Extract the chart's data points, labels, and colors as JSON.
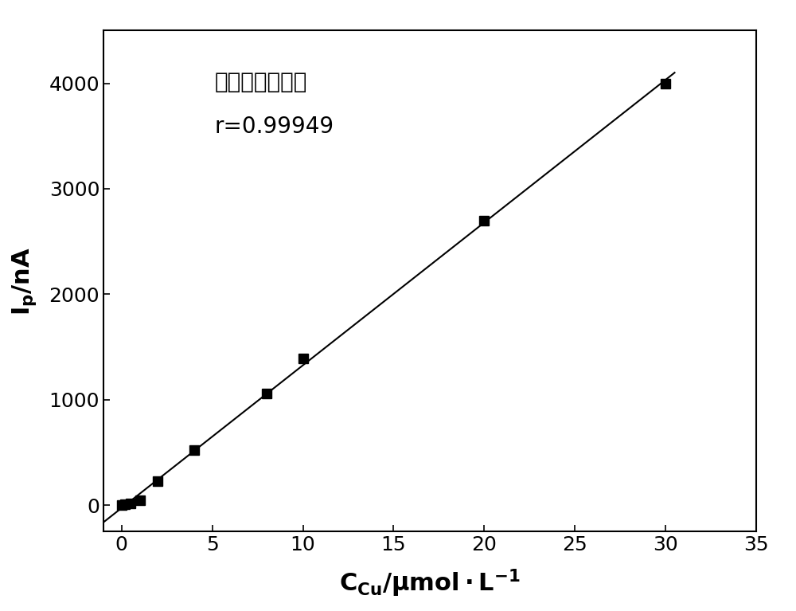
{
  "x_data": [
    0,
    0.2,
    0.5,
    1.0,
    2.0,
    4.0,
    8.0,
    10.0,
    20.0,
    30.0
  ],
  "y_data": [
    0,
    10,
    20,
    50,
    230,
    520,
    1060,
    1390,
    2700,
    4000
  ],
  "line_x": [
    -1,
    30.5
  ],
  "annotation_line1": "线性相关系数：",
  "annotation_line2": "r=0.99949",
  "xlim": [
    -1,
    35
  ],
  "ylim": [
    -250,
    4500
  ],
  "xticks": [
    0,
    5,
    10,
    15,
    20,
    25,
    30,
    35
  ],
  "yticks": [
    0,
    1000,
    2000,
    3000,
    4000
  ],
  "bg_color": "#ffffff",
  "marker_size": 8,
  "line_width": 1.5,
  "xlabel_fontsize": 22,
  "ylabel_fontsize": 22,
  "tick_fontsize": 18,
  "annot_fontsize": 20
}
